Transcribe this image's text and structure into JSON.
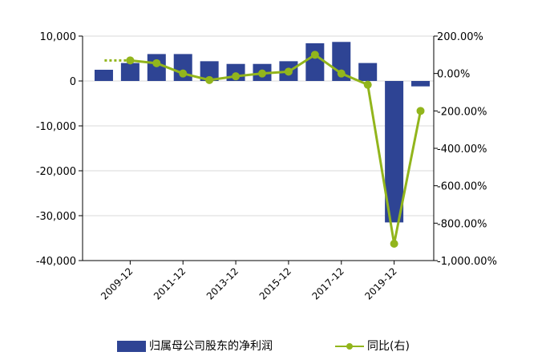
{
  "chart_data": {
    "type": "bar",
    "categories": [
      "2008-12",
      "2009-12",
      "2010-12",
      "2011-12",
      "2012-12",
      "2013-12",
      "2014-12",
      "2015-12",
      "2016-12",
      "2017-12",
      "2018-12",
      "2019-12",
      "2020-12"
    ],
    "x_tick_labels": [
      "2009-12",
      "2011-12",
      "2013-12",
      "2015-12",
      "2017-12",
      "2019-12"
    ],
    "series": [
      {
        "name": "归属母公司股东的净利润",
        "type": "bar",
        "axis": "left",
        "color": "#2e4494",
        "values": [
          2500,
          4000,
          6000,
          6000,
          4400,
          3800,
          3800,
          4400,
          8400,
          8700,
          4000,
          -31500,
          -1200
        ]
      },
      {
        "name": "同比(右)",
        "type": "line",
        "axis": "right",
        "color": "#92b51c",
        "values": [
          null,
          70,
          55,
          0,
          -35,
          -15,
          0,
          10,
          100,
          0,
          -60,
          -910,
          -200
        ],
        "dotted_lead_in": true
      }
    ],
    "y_left": {
      "ticks": [
        "10,000",
        "0",
        "-10,000",
        "-20,000",
        "-30,000",
        "-40,000"
      ],
      "ylim": [
        -40000,
        10000
      ]
    },
    "y_right": {
      "ticks": [
        "200.00%",
        "0.00%",
        "-200.00%",
        "-400.00%",
        "-600.00%",
        "-800.00%",
        "-1,000.00%"
      ],
      "ylim": [
        -1000,
        200
      ]
    },
    "grid": "horizontal",
    "legend_position": "bottom"
  },
  "legend": {
    "bar_label": "归属母公司股东的净利润",
    "line_label": "同比(右)"
  }
}
